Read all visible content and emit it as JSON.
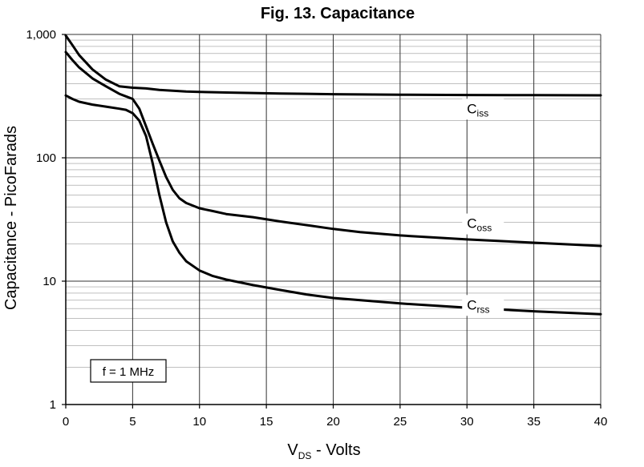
{
  "chart_data": {
    "type": "line",
    "title": "Fig. 13. Capacitance",
    "xlabel": {
      "main": "V",
      "sub": "DS",
      "rest": " - Volts"
    },
    "ylabel": "Capacitance - PicoFarads",
    "x_scale": "linear",
    "y_scale": "log",
    "xlim": [
      0,
      40
    ],
    "ylim": [
      1,
      1000
    ],
    "xticks": [
      0,
      5,
      10,
      15,
      20,
      25,
      30,
      35,
      40
    ],
    "xtick_labels": [
      "0",
      "5",
      "10",
      "15",
      "20",
      "25",
      "30",
      "35",
      "40"
    ],
    "yticks": [
      1,
      10,
      100,
      1000
    ],
    "ytick_labels": [
      "1",
      "10",
      "100",
      "1,000"
    ],
    "grid": true,
    "annotation": "f = 1 MHz",
    "series": [
      {
        "name": "Ciss",
        "label": {
          "main": "C",
          "sub": "iss"
        },
        "label_at": [
          30,
          230
        ],
        "x": [
          0,
          0.5,
          1,
          2,
          3,
          4,
          5,
          6,
          7,
          8,
          9,
          10,
          12,
          14,
          16,
          18,
          20,
          25,
          30,
          35,
          40
        ],
        "y": [
          980,
          820,
          680,
          520,
          430,
          380,
          370,
          365,
          355,
          350,
          345,
          342,
          338,
          335,
          332,
          330,
          328,
          325,
          323,
          322,
          321
        ]
      },
      {
        "name": "Coss",
        "label": {
          "main": "C",
          "sub": "oss"
        },
        "label_at": [
          30,
          27
        ],
        "x": [
          0,
          0.5,
          1,
          2,
          3,
          4,
          4.5,
          5,
          5.5,
          6,
          6.5,
          7,
          7.5,
          8,
          8.5,
          9,
          10,
          11,
          12,
          14,
          16,
          18,
          20,
          22,
          25,
          30,
          35,
          40
        ],
        "y": [
          720,
          620,
          540,
          440,
          380,
          330,
          315,
          300,
          250,
          180,
          130,
          95,
          70,
          55,
          47,
          43,
          39,
          37,
          35,
          33,
          30.5,
          28.5,
          26.5,
          25,
          23.5,
          21.8,
          20.5,
          19.3
        ]
      },
      {
        "name": "Crss",
        "label": {
          "main": "C",
          "sub": "rss"
        },
        "label_at": [
          30,
          5.9
        ],
        "x": [
          0,
          0.5,
          1,
          2,
          3,
          4,
          4.5,
          5,
          5.5,
          6,
          6.5,
          7,
          7.5,
          8,
          8.5,
          9,
          10,
          11,
          12,
          14,
          16,
          18,
          20,
          25,
          30,
          35,
          40
        ],
        "y": [
          320,
          300,
          285,
          270,
          260,
          250,
          245,
          230,
          200,
          150,
          90,
          50,
          30,
          21,
          17,
          14.5,
          12.2,
          11,
          10.3,
          9.3,
          8.5,
          7.8,
          7.3,
          6.6,
          6.1,
          5.7,
          5.4
        ]
      }
    ]
  }
}
